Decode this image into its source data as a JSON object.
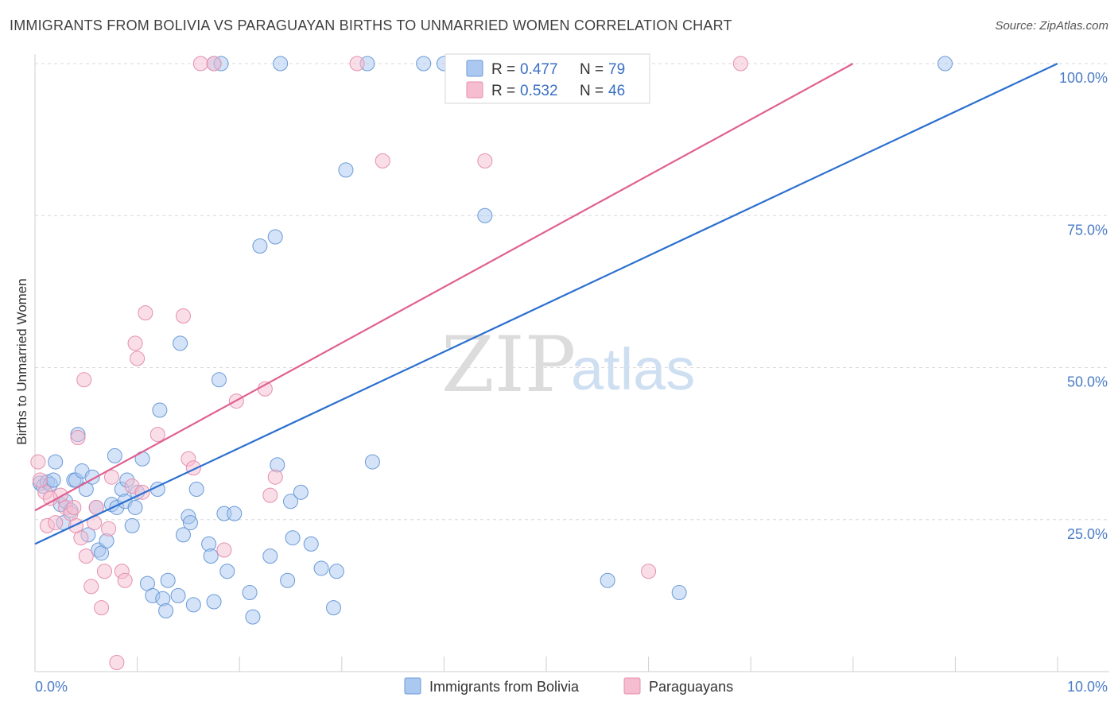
{
  "title": "IMMIGRANTS FROM BOLIVIA VS PARAGUAYAN BIRTHS TO UNMARRIED WOMEN CORRELATION CHART",
  "source": "Source: ZipAtlas.com",
  "watermark": {
    "zip": "ZIP",
    "atlas": "atlas"
  },
  "colors": {
    "blue_fill": "#aac8f0",
    "blue_stroke": "#6a9ad8",
    "blue_line": "#2b6fd0",
    "pink_fill": "#f6bdd0",
    "pink_stroke": "#e58fb0",
    "pink_line": "#e06090",
    "tick": "#4a7cc6",
    "grid": "#d8d8d8"
  },
  "legend": {
    "items": [
      {
        "r_label": "R =",
        "r_value": "0.477",
        "n_label": "N =",
        "n_value": "79"
      },
      {
        "r_label": "R =",
        "r_value": "0.532",
        "n_label": "N =",
        "n_value": "46"
      }
    ]
  },
  "bottom_legend": [
    "Immigrants from Bolivia",
    "Paraguayans"
  ],
  "chart_data": {
    "type": "scatter",
    "title": "IMMIGRANTS FROM BOLIVIA VS PARAGUAYAN BIRTHS TO UNMARRIED WOMEN CORRELATION CHART",
    "xlabel": "",
    "ylabel": "Births to Unmarried Women",
    "xlim": [
      0,
      10
    ],
    "ylim": [
      0,
      100
    ],
    "x_ticks": [
      "0.0%",
      "10.0%"
    ],
    "y_ticks": [
      "25.0%",
      "50.0%",
      "75.0%",
      "100.0%"
    ],
    "grid": true,
    "legend_position": "top-center",
    "series": [
      {
        "name": "Immigrants from Bolivia",
        "color": "#aac8f0",
        "trend": [
          [
            0,
            21
          ],
          [
            10,
            100
          ]
        ],
        "points": [
          [
            0.05,
            31
          ],
          [
            0.08,
            30.5
          ],
          [
            0.12,
            31.2
          ],
          [
            0.15,
            30.8
          ],
          [
            0.18,
            31.5
          ],
          [
            0.2,
            34.5
          ],
          [
            0.25,
            27.5
          ],
          [
            0.28,
            24.5
          ],
          [
            0.3,
            28
          ],
          [
            0.35,
            26.5
          ],
          [
            0.38,
            31.5
          ],
          [
            0.4,
            31.5
          ],
          [
            0.42,
            39
          ],
          [
            0.46,
            33
          ],
          [
            0.5,
            30
          ],
          [
            0.52,
            22.5
          ],
          [
            0.56,
            32
          ],
          [
            0.6,
            27
          ],
          [
            0.62,
            20
          ],
          [
            0.65,
            19.5
          ],
          [
            0.7,
            21.5
          ],
          [
            0.75,
            27.5
          ],
          [
            0.78,
            35.5
          ],
          [
            0.8,
            27
          ],
          [
            0.85,
            30
          ],
          [
            0.88,
            28
          ],
          [
            0.9,
            31.5
          ],
          [
            0.95,
            24
          ],
          [
            0.98,
            27
          ],
          [
            1.0,
            29.5
          ],
          [
            1.05,
            35
          ],
          [
            1.1,
            14.5
          ],
          [
            1.15,
            12.5
          ],
          [
            1.2,
            30
          ],
          [
            1.22,
            43
          ],
          [
            1.25,
            12
          ],
          [
            1.28,
            10
          ],
          [
            1.3,
            15
          ],
          [
            1.4,
            12.5
          ],
          [
            1.42,
            54
          ],
          [
            1.45,
            22.5
          ],
          [
            1.5,
            25.5
          ],
          [
            1.52,
            24.5
          ],
          [
            1.55,
            11
          ],
          [
            1.58,
            30
          ],
          [
            1.7,
            21
          ],
          [
            1.72,
            19
          ],
          [
            1.75,
            11.5
          ],
          [
            1.8,
            48
          ],
          [
            1.85,
            26
          ],
          [
            1.88,
            16.5
          ],
          [
            1.95,
            26
          ],
          [
            2.1,
            13
          ],
          [
            2.13,
            9
          ],
          [
            2.2,
            70
          ],
          [
            2.3,
            19
          ],
          [
            2.35,
            71.5
          ],
          [
            2.37,
            34
          ],
          [
            2.47,
            15
          ],
          [
            2.5,
            28
          ],
          [
            2.52,
            22
          ],
          [
            2.6,
            29.5
          ],
          [
            2.7,
            21
          ],
          [
            2.8,
            17
          ],
          [
            2.92,
            10.5
          ],
          [
            2.95,
            16.5
          ],
          [
            3.04,
            82.5
          ],
          [
            3.3,
            34.5
          ],
          [
            4.4,
            75
          ],
          [
            1.75,
            100
          ],
          [
            1.82,
            100
          ],
          [
            2.4,
            100
          ],
          [
            3.25,
            100
          ],
          [
            3.8,
            100
          ],
          [
            4.0,
            100
          ],
          [
            4.7,
            100
          ],
          [
            8.9,
            100
          ],
          [
            5.6,
            15
          ],
          [
            6.3,
            13
          ]
        ]
      },
      {
        "name": "Paraguayans",
        "color": "#f6bdd0",
        "trend": [
          [
            0,
            26.5
          ],
          [
            8,
            100
          ]
        ],
        "points": [
          [
            0.03,
            34.5
          ],
          [
            0.1,
            29.5
          ],
          [
            0.12,
            24
          ],
          [
            0.2,
            24.5
          ],
          [
            0.25,
            29
          ],
          [
            0.3,
            27
          ],
          [
            0.35,
            26
          ],
          [
            0.38,
            27
          ],
          [
            0.42,
            38.5
          ],
          [
            0.45,
            22
          ],
          [
            0.48,
            48
          ],
          [
            0.5,
            19
          ],
          [
            0.55,
            14
          ],
          [
            0.6,
            27
          ],
          [
            0.65,
            10.5
          ],
          [
            0.68,
            16.5
          ],
          [
            0.72,
            23.5
          ],
          [
            0.75,
            32
          ],
          [
            0.8,
            1.5
          ],
          [
            0.85,
            16.5
          ],
          [
            0.88,
            15
          ],
          [
            0.95,
            30.5
          ],
          [
            0.98,
            54
          ],
          [
            1.0,
            51.5
          ],
          [
            1.05,
            29.5
          ],
          [
            1.08,
            59
          ],
          [
            1.2,
            39
          ],
          [
            1.45,
            58.5
          ],
          [
            1.5,
            35
          ],
          [
            1.55,
            33.5
          ],
          [
            1.62,
            100
          ],
          [
            1.75,
            100
          ],
          [
            1.85,
            20
          ],
          [
            1.97,
            44.5
          ],
          [
            2.25,
            46.5
          ],
          [
            2.3,
            29
          ],
          [
            2.35,
            32
          ],
          [
            3.15,
            100
          ],
          [
            3.4,
            84
          ],
          [
            4.4,
            84
          ],
          [
            6.0,
            16.5
          ],
          [
            6.9,
            100
          ],
          [
            0.05,
            31.5
          ],
          [
            0.15,
            28.5
          ],
          [
            0.4,
            24
          ],
          [
            0.58,
            24.5
          ]
        ]
      }
    ]
  }
}
